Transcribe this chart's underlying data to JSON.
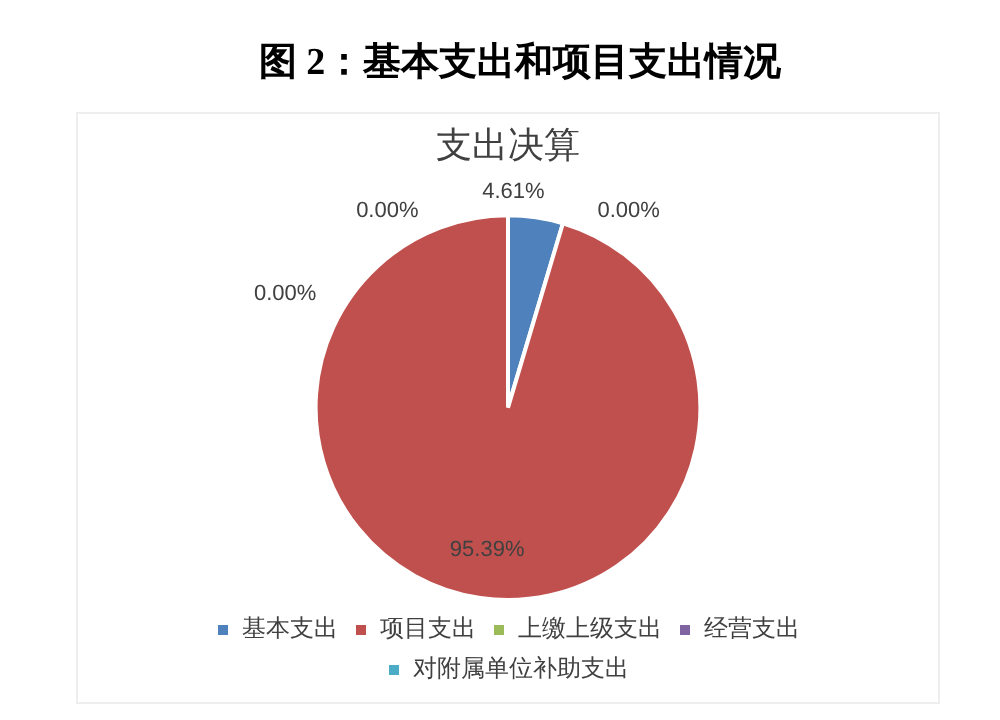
{
  "chart_data": {
    "type": "pie",
    "title": "图 2：基本支出和项目支出情况",
    "subtitle": "支出决算",
    "categories": [
      "基本支出",
      "项目支出",
      "上缴上级支出",
      "经营支出",
      "对附属单位补助支出"
    ],
    "values": [
      4.61,
      95.39,
      0,
      0,
      0
    ],
    "colors": [
      "#4f81bd",
      "#c0504d",
      "#9bbb59",
      "#8064a2",
      "#4bacc6"
    ],
    "value_labels": [
      "4.61%",
      "95.39%",
      "0.00%",
      "0.00%",
      "0.00%"
    ],
    "legend": "bottom"
  }
}
